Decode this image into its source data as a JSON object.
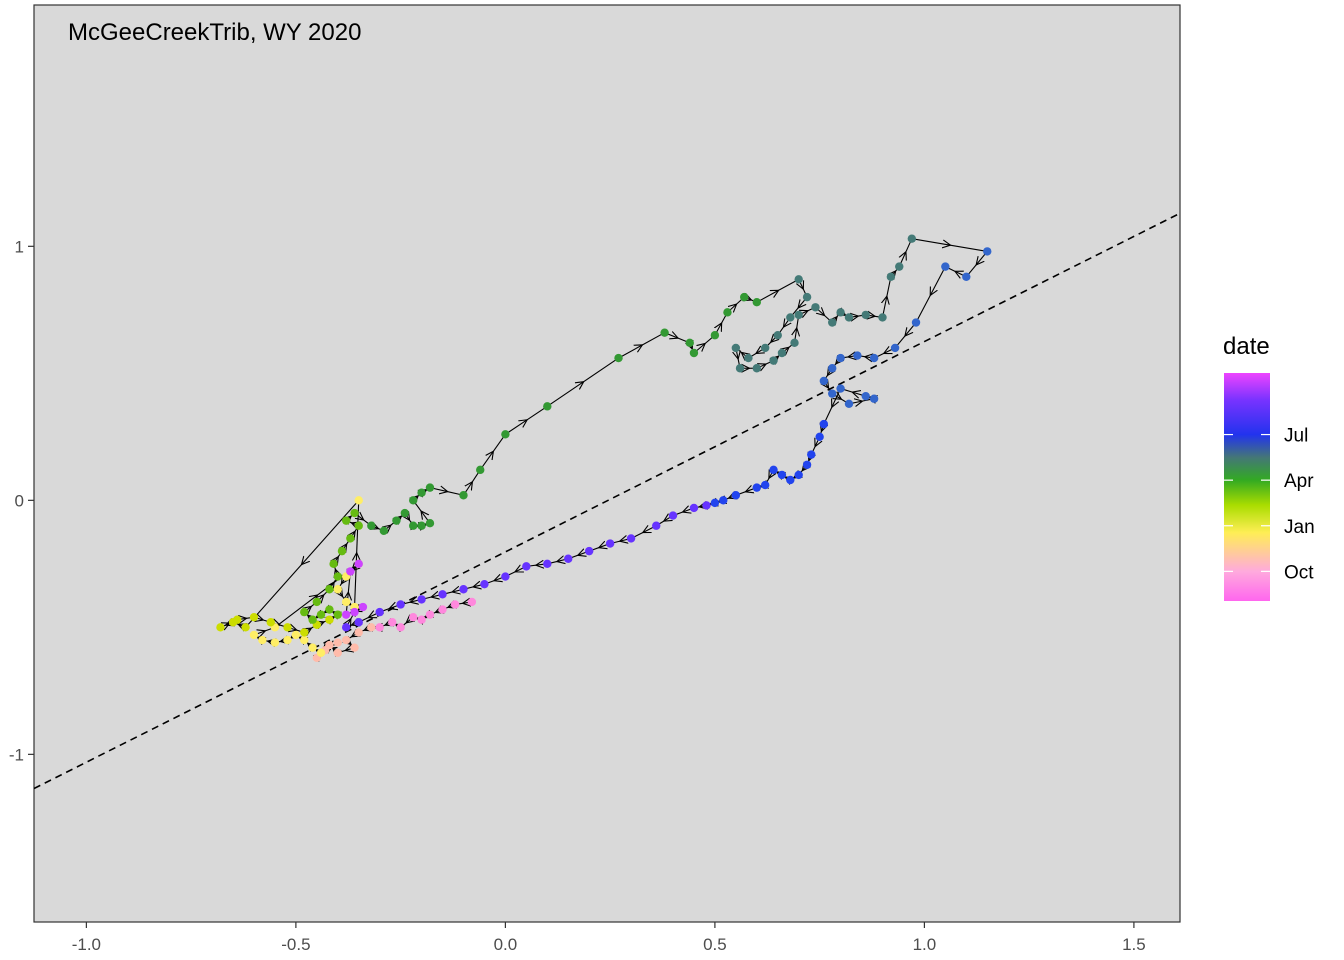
{
  "chart_data": {
    "type": "scatter",
    "title": "McGeeCreekTrib, WY 2020",
    "xlabel": "",
    "ylabel": "",
    "xlim": [
      -1.125,
      1.61
    ],
    "ylim": [
      -1.66,
      1.95
    ],
    "x_ticks": [
      "-1.0",
      "-0.5",
      "0.0",
      "0.5",
      "1.0",
      "1.5"
    ],
    "y_ticks": [
      "-1",
      "0",
      "1"
    ],
    "x_tick_values": [
      -1.0,
      -0.5,
      0.0,
      0.5,
      1.0,
      1.5
    ],
    "y_tick_values": [
      -1,
      0,
      1
    ],
    "reference_line": {
      "style": "dashed",
      "color": "#000000",
      "slope": 0.828,
      "intercept": -0.203
    },
    "panel_background": "#d9d9d9",
    "grid": false,
    "arrows_between_points": true,
    "legend": {
      "title": "date",
      "placement": "right",
      "labels": [
        "Jul",
        "Apr",
        "Jan",
        "Oct"
      ],
      "label_fractions": [
        0.73,
        0.53,
        0.33,
        0.13
      ],
      "gradient": [
        {
          "stop": 0.0,
          "color": "#ff66ee"
        },
        {
          "stop": 0.13,
          "color": "#ffaadd"
        },
        {
          "stop": 0.3,
          "color": "#ffee55"
        },
        {
          "stop": 0.42,
          "color": "#aadd00"
        },
        {
          "stop": 0.53,
          "color": "#33aa22"
        },
        {
          "stop": 0.63,
          "color": "#447777"
        },
        {
          "stop": 0.73,
          "color": "#2233ee"
        },
        {
          "stop": 0.88,
          "color": "#7733ff"
        },
        {
          "stop": 1.0,
          "color": "#ee44ff"
        }
      ]
    },
    "series": [
      {
        "color": "#ff88dd",
        "points": [
          [
            -0.08,
            -0.4
          ],
          [
            -0.12,
            -0.41
          ],
          [
            -0.15,
            -0.43
          ],
          [
            -0.18,
            -0.45
          ],
          [
            -0.2,
            -0.47
          ],
          [
            -0.22,
            -0.46
          ],
          [
            -0.25,
            -0.5
          ],
          [
            -0.27,
            -0.48
          ],
          [
            -0.3,
            -0.5
          ]
        ]
      },
      {
        "color": "#ffbbaa",
        "points": [
          [
            -0.32,
            -0.5
          ],
          [
            -0.35,
            -0.52
          ],
          [
            -0.38,
            -0.55
          ],
          [
            -0.36,
            -0.58
          ],
          [
            -0.4,
            -0.6
          ],
          [
            -0.42,
            -0.57
          ],
          [
            -0.45,
            -0.62
          ],
          [
            -0.43,
            -0.59
          ],
          [
            -0.4,
            -0.56
          ]
        ]
      },
      {
        "color": "#ffee66",
        "points": [
          [
            -0.44,
            -0.6
          ],
          [
            -0.46,
            -0.58
          ],
          [
            -0.48,
            -0.55
          ],
          [
            -0.5,
            -0.53
          ],
          [
            -0.52,
            -0.55
          ],
          [
            -0.55,
            -0.56
          ],
          [
            -0.58,
            -0.55
          ],
          [
            -0.6,
            -0.53
          ],
          [
            -0.55,
            -0.5
          ],
          [
            -0.35,
            -0.25
          ],
          [
            -0.38,
            -0.3
          ],
          [
            -0.4,
            -0.35
          ],
          [
            -0.38,
            -0.4
          ],
          [
            -0.36,
            -0.42
          ],
          [
            -0.35,
            0.0
          ]
        ]
      },
      {
        "color": "#ccdd00",
        "points": [
          [
            -0.62,
            -0.5
          ],
          [
            -0.65,
            -0.48
          ],
          [
            -0.68,
            -0.5
          ],
          [
            -0.64,
            -0.47
          ],
          [
            -0.6,
            -0.46
          ],
          [
            -0.56,
            -0.48
          ],
          [
            -0.52,
            -0.5
          ],
          [
            -0.48,
            -0.52
          ],
          [
            -0.45,
            -0.49
          ],
          [
            -0.42,
            -0.47
          ]
        ]
      },
      {
        "color": "#66bb11",
        "points": [
          [
            -0.4,
            -0.45
          ],
          [
            -0.42,
            -0.43
          ],
          [
            -0.44,
            -0.45
          ],
          [
            -0.46,
            -0.47
          ],
          [
            -0.48,
            -0.44
          ],
          [
            -0.45,
            -0.4
          ],
          [
            -0.42,
            -0.35
          ],
          [
            -0.4,
            -0.3
          ],
          [
            -0.41,
            -0.25
          ],
          [
            -0.39,
            -0.2
          ],
          [
            -0.37,
            -0.15
          ],
          [
            -0.35,
            -0.1
          ],
          [
            -0.38,
            -0.08
          ],
          [
            -0.36,
            -0.05
          ]
        ]
      },
      {
        "color": "#339933",
        "points": [
          [
            -0.32,
            -0.1
          ],
          [
            -0.29,
            -0.12
          ],
          [
            -0.26,
            -0.08
          ],
          [
            -0.24,
            -0.05
          ],
          [
            -0.22,
            -0.1
          ],
          [
            -0.2,
            -0.1
          ],
          [
            -0.18,
            -0.09
          ],
          [
            -0.22,
            0.0
          ],
          [
            -0.2,
            0.03
          ],
          [
            -0.18,
            0.05
          ],
          [
            -0.1,
            0.02
          ],
          [
            -0.06,
            0.12
          ],
          [
            0.0,
            0.26
          ],
          [
            0.1,
            0.37
          ],
          [
            0.27,
            0.56
          ],
          [
            0.38,
            0.66
          ],
          [
            0.44,
            0.62
          ],
          [
            0.45,
            0.58
          ],
          [
            0.5,
            0.65
          ],
          [
            0.53,
            0.74
          ],
          [
            0.57,
            0.8
          ],
          [
            0.6,
            0.78
          ]
        ]
      },
      {
        "color": "#447a77",
        "points": [
          [
            0.7,
            0.87
          ],
          [
            0.72,
            0.8
          ],
          [
            0.68,
            0.72
          ],
          [
            0.65,
            0.65
          ],
          [
            0.62,
            0.6
          ],
          [
            0.58,
            0.56
          ],
          [
            0.55,
            0.6
          ],
          [
            0.56,
            0.52
          ],
          [
            0.6,
            0.52
          ],
          [
            0.64,
            0.55
          ],
          [
            0.66,
            0.58
          ],
          [
            0.69,
            0.62
          ],
          [
            0.7,
            0.73
          ],
          [
            0.74,
            0.76
          ],
          [
            0.78,
            0.7
          ],
          [
            0.8,
            0.74
          ],
          [
            0.82,
            0.72
          ],
          [
            0.86,
            0.73
          ],
          [
            0.9,
            0.72
          ],
          [
            0.92,
            0.88
          ],
          [
            0.94,
            0.92
          ],
          [
            0.97,
            1.03
          ]
        ]
      },
      {
        "color": "#3366cc",
        "points": [
          [
            1.15,
            0.98
          ],
          [
            1.1,
            0.88
          ],
          [
            1.05,
            0.92
          ],
          [
            0.98,
            0.7
          ],
          [
            0.93,
            0.6
          ],
          [
            0.88,
            0.56
          ],
          [
            0.84,
            0.57
          ],
          [
            0.8,
            0.56
          ],
          [
            0.78,
            0.52
          ],
          [
            0.76,
            0.47
          ],
          [
            0.78,
            0.42
          ],
          [
            0.82,
            0.38
          ],
          [
            0.88,
            0.4
          ],
          [
            0.86,
            0.41
          ],
          [
            0.8,
            0.44
          ]
        ]
      },
      {
        "color": "#2244ee",
        "points": [
          [
            0.76,
            0.3
          ],
          [
            0.75,
            0.25
          ],
          [
            0.73,
            0.18
          ],
          [
            0.72,
            0.14
          ],
          [
            0.7,
            0.1
          ],
          [
            0.68,
            0.08
          ],
          [
            0.66,
            0.1
          ],
          [
            0.64,
            0.12
          ],
          [
            0.62,
            0.06
          ],
          [
            0.6,
            0.05
          ],
          [
            0.55,
            0.02
          ],
          [
            0.52,
            0.0
          ],
          [
            0.5,
            -0.01
          ]
        ]
      },
      {
        "color": "#6633ff",
        "points": [
          [
            0.48,
            -0.02
          ],
          [
            0.45,
            -0.03
          ],
          [
            0.4,
            -0.06
          ],
          [
            0.36,
            -0.1
          ],
          [
            0.3,
            -0.15
          ],
          [
            0.25,
            -0.17
          ],
          [
            0.2,
            -0.2
          ],
          [
            0.15,
            -0.23
          ],
          [
            0.1,
            -0.25
          ],
          [
            0.05,
            -0.26
          ],
          [
            0.0,
            -0.3
          ],
          [
            -0.05,
            -0.33
          ],
          [
            -0.1,
            -0.35
          ],
          [
            -0.15,
            -0.37
          ],
          [
            -0.2,
            -0.39
          ],
          [
            -0.25,
            -0.41
          ],
          [
            -0.3,
            -0.44
          ],
          [
            -0.35,
            -0.48
          ],
          [
            -0.38,
            -0.5
          ]
        ]
      },
      {
        "color": "#cc44ff",
        "points": [
          [
            -0.36,
            -0.44
          ],
          [
            -0.34,
            -0.42
          ],
          [
            -0.38,
            -0.45
          ],
          [
            -0.37,
            -0.28
          ],
          [
            -0.35,
            -0.25
          ]
        ]
      }
    ]
  }
}
